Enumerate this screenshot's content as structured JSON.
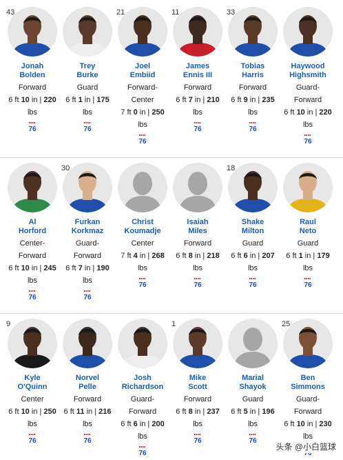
{
  "accent_color": "#1d5fa7",
  "jersey_color": "#1f4fa8",
  "rows": [
    [
      {
        "number": "43",
        "name": "Jonah\nBolden",
        "position": "Forward",
        "height_a": "6 ft ",
        "height_b": "10",
        "height_c": " in | ",
        "weight_a": "220",
        "weight_b": " lbs",
        "skin": "#6b4532",
        "jersey": "#1f4fa8",
        "photo": true
      },
      {
        "number": "",
        "name": "Trey\nBurke",
        "position": "Guard",
        "height_a": "6 ft ",
        "height_b": "1",
        "height_c": " in | ",
        "weight_a": "175",
        "weight_b": "\nlbs",
        "skin": "#5a3a2a",
        "jersey": "#eeeeee",
        "photo": true
      },
      {
        "number": "21",
        "name": "Joel\nEmbiid",
        "position": "Forward-\nCenter",
        "height_a": "7 ft ",
        "height_b": "0",
        "height_c": " in | ",
        "weight_a": "250",
        "weight_b": "\nlbs",
        "skin": "#4a2e20",
        "jersey": "#1f4fa8",
        "photo": true
      },
      {
        "number": "11",
        "name": "James\nEnnis III",
        "position": "Forward",
        "height_a": "6 ft ",
        "height_b": "7",
        "height_c": " in | ",
        "weight_a": "210",
        "weight_b": "\nlbs",
        "skin": "#3e2a20",
        "jersey": "#c8202b",
        "photo": true
      },
      {
        "number": "33",
        "name": "Tobias\nHarris",
        "position": "Forward",
        "height_a": "6 ft ",
        "height_b": "9",
        "height_c": " in | ",
        "weight_a": "235",
        "weight_b": "\nlbs",
        "skin": "#5c3b2b",
        "jersey": "#1f4fa8",
        "photo": true
      },
      {
        "number": "",
        "name": "Haywood\nHighsmith",
        "position": "Guard-\nForward",
        "height_a": "6 ft ",
        "height_b": "10",
        "height_c": " in | ",
        "weight_a": "220",
        "weight_b": "\nlbs",
        "skin": "#4c3024",
        "jersey": "#1f4fa8",
        "photo": true
      }
    ],
    [
      {
        "number": "",
        "name": "Al\nHorford",
        "position": "Center-\nForward",
        "height_a": "6 ft ",
        "height_b": "10",
        "height_c": " in | ",
        "weight_a": "245",
        "weight_b": " lbs",
        "skin": "#4e3123",
        "jersey": "#2f8a4a",
        "photo": true
      },
      {
        "number": "30",
        "name": "Furkan\nKorkmaz",
        "position": "Guard-\nForward",
        "height_a": "6 ft ",
        "height_b": "7",
        "height_c": " in | ",
        "weight_a": "190",
        "weight_b": "\nlbs",
        "skin": "#d9b08e",
        "jersey": "#1f4fa8",
        "photo": true
      },
      {
        "number": "",
        "name": "Christ\nKoumadje",
        "position": "Center",
        "height_a": "7 ft ",
        "height_b": "4",
        "height_c": " in | ",
        "weight_a": "268",
        "weight_b": "\nlbs",
        "skin": "",
        "jersey": "",
        "photo": false
      },
      {
        "number": "",
        "name": "Isaiah\nMiles",
        "position": "Forward",
        "height_a": "6 ft ",
        "height_b": "8",
        "height_c": " in | ",
        "weight_a": "218",
        "weight_b": "\nlbs",
        "skin": "",
        "jersey": "",
        "photo": false
      },
      {
        "number": "18",
        "name": "Shake\nMilton",
        "position": "Guard",
        "height_a": "6 ft ",
        "height_b": "6",
        "height_c": " in | ",
        "weight_a": "207",
        "weight_b": "\nlbs",
        "skin": "#4a2e20",
        "jersey": "#1f4fa8",
        "photo": true
      },
      {
        "number": "",
        "name": "Raul\nNeto",
        "position": "Guard",
        "height_a": "6 ft ",
        "height_b": "1",
        "height_c": " in | ",
        "weight_a": "179",
        "weight_b": "\nlbs",
        "skin": "#d8ae8a",
        "jersey": "#e6b21c",
        "photo": true
      }
    ],
    [
      {
        "number": "9",
        "name": "Kyle\nO'Quinn",
        "position": "Center",
        "height_a": "6 ft ",
        "height_b": "10",
        "height_c": " in | ",
        "weight_a": "250",
        "weight_b": " lbs",
        "skin": "#4a2e20",
        "jersey": "#1a1a1a",
        "photo": true
      },
      {
        "number": "",
        "name": "Norvel\nPelle",
        "position": "Forward",
        "height_a": "6 ft ",
        "height_b": "11",
        "height_c": " in | ",
        "weight_a": "216",
        "weight_b": " lbs",
        "skin": "#3c281d",
        "jersey": "#1f4fa8",
        "photo": true
      },
      {
        "number": "",
        "name": "Josh\nRichardson",
        "position": "Guard-\nForward",
        "height_a": "6 ft ",
        "height_b": "6",
        "height_c": " in | ",
        "weight_a": "200",
        "weight_b": "\nlbs",
        "skin": "#4a2e20",
        "jersey": "#eeeeee",
        "photo": true
      },
      {
        "number": "1",
        "name": "Mike\nScott",
        "position": "Forward",
        "height_a": "6 ft ",
        "height_b": "8",
        "height_c": " in | ",
        "weight_a": "237",
        "weight_b": "\nlbs",
        "skin": "#5a3a2a",
        "jersey": "#1f4fa8",
        "photo": true
      },
      {
        "number": "",
        "name": "Marial\nShayok",
        "position": "Guard",
        "height_a": "6 ft ",
        "height_b": "5",
        "height_c": " in | ",
        "weight_a": "196",
        "weight_b": "\nlbs",
        "skin": "",
        "jersey": "",
        "photo": false
      },
      {
        "number": "25",
        "name": "Ben\nSimmons",
        "position": "Guard-\nForward",
        "height_a": "6 ft ",
        "height_b": "10",
        "height_c": " in | ",
        "weight_a": "230",
        "weight_b": " lbs",
        "skin": "#7a5038",
        "jersey": "#1f4fa8",
        "photo": true
      }
    ]
  ],
  "logo_text": "76",
  "watermark": "头条 @小白篮球"
}
